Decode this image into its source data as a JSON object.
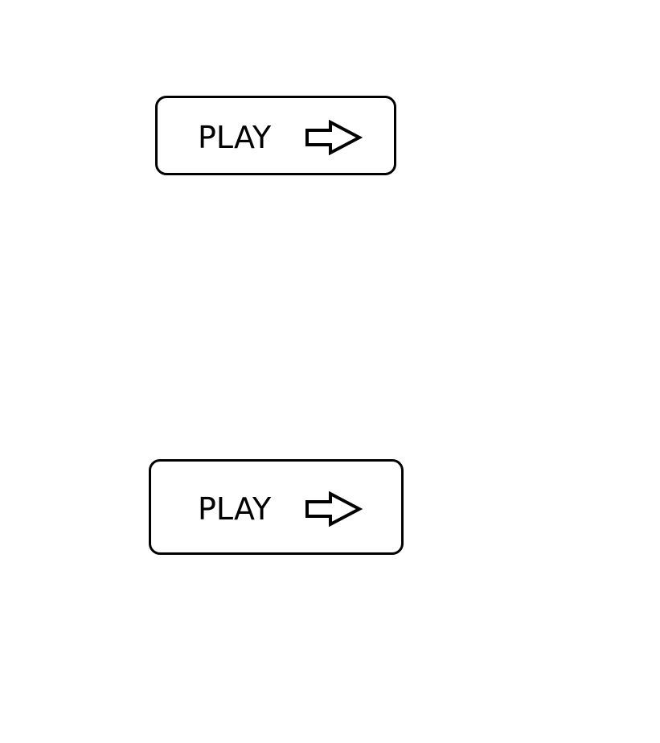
{
  "buttons": [
    {
      "label": "PLAY",
      "icon": "right-arrow-icon"
    },
    {
      "label": "PLAY",
      "icon": "right-arrow-icon"
    }
  ],
  "colors": {
    "background": "#ffffff",
    "stroke": "#000000"
  }
}
